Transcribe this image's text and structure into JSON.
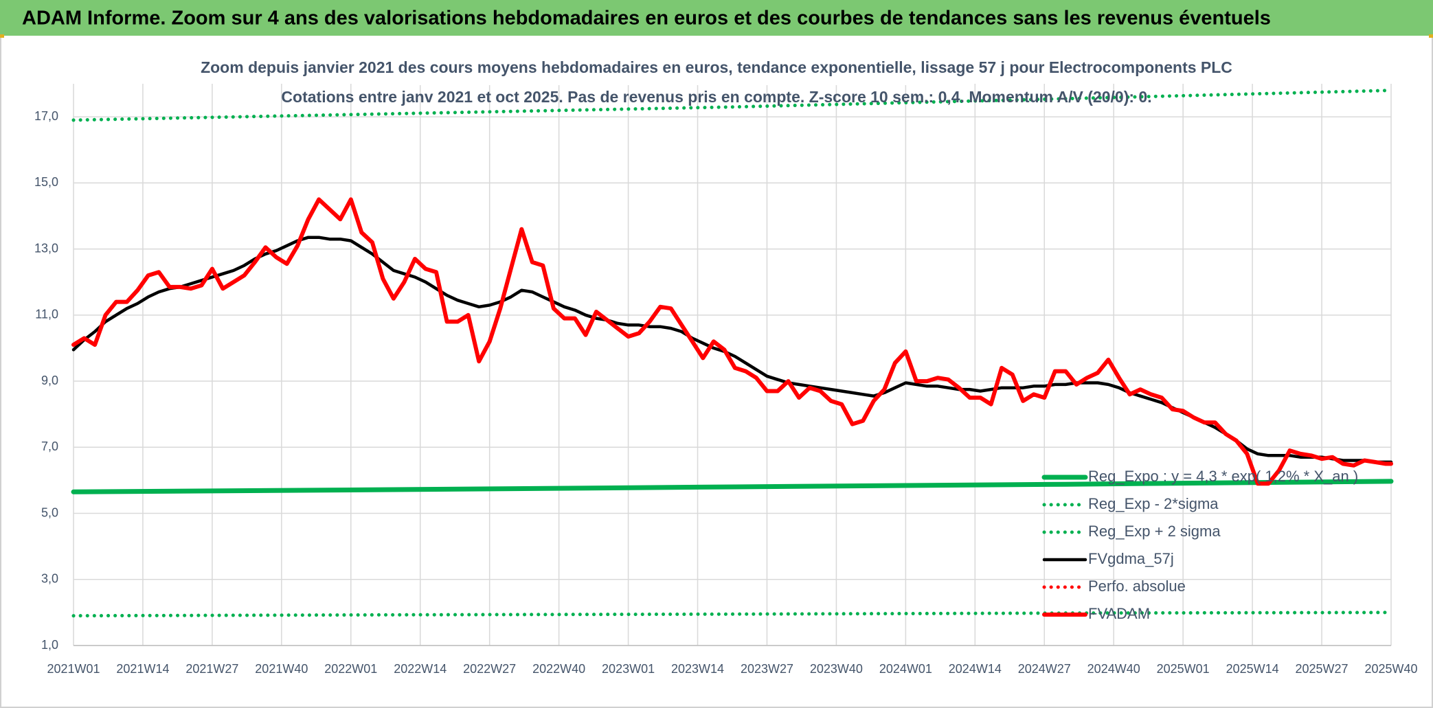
{
  "chart_data": {
    "type": "line",
    "title": "ADAM Informe. Zoom sur 4 ans des valorisations hebdomadaires en euros et des courbes de tendances sans les revenus éventuels",
    "subtitle": "Zoom depuis janvier 2021 des cours moyens hebdomadaires en euros, tendance exponentielle, lissage 57 j pour Electrocomponents PLC",
    "subtitle2": "Cotations entre janv 2021 et oct 2025. Pas de revenus pris en compte. Z-score 10 sem.: 0,4. Momentum A/V (20/0): 0.",
    "x": [
      0,
      2,
      4,
      6,
      8,
      10,
      12,
      14,
      16,
      18,
      20,
      22,
      24,
      26,
      28,
      30,
      32,
      34,
      36,
      38,
      40,
      42,
      44,
      46,
      48,
      50,
      52,
      54,
      56,
      58,
      60,
      62,
      64,
      66,
      68,
      70,
      72,
      74,
      76,
      78,
      80,
      82,
      84,
      86,
      88,
      90,
      92,
      94,
      96,
      98,
      100,
      102,
      104,
      106,
      108,
      110,
      112,
      114,
      116,
      118,
      120,
      122,
      124,
      126,
      128,
      130,
      132,
      134,
      136,
      138,
      140,
      142,
      144,
      146,
      148,
      150,
      152,
      154,
      156,
      158,
      160,
      162,
      164,
      166,
      168,
      170,
      172,
      174,
      176,
      178,
      180,
      182,
      184,
      186,
      188,
      190,
      192,
      194,
      196,
      198,
      200,
      202,
      204,
      206,
      208,
      210,
      212,
      214,
      216,
      218,
      220,
      222,
      224,
      226,
      228,
      230,
      232,
      234,
      236,
      238,
      240,
      242,
      244,
      246,
      247
    ],
    "xlim": [
      0,
      247
    ],
    "xticks": [
      {
        "value": 0,
        "label": "2021W01"
      },
      {
        "value": 13,
        "label": "2021W14"
      },
      {
        "value": 26,
        "label": "2021W27"
      },
      {
        "value": 39,
        "label": "2021W40"
      },
      {
        "value": 52,
        "label": "2022W01"
      },
      {
        "value": 65,
        "label": "2022W14"
      },
      {
        "value": 78,
        "label": "2022W27"
      },
      {
        "value": 91,
        "label": "2022W40"
      },
      {
        "value": 104,
        "label": "2023W01"
      },
      {
        "value": 117,
        "label": "2023W14"
      },
      {
        "value": 130,
        "label": "2023W27"
      },
      {
        "value": 143,
        "label": "2023W40"
      },
      {
        "value": 156,
        "label": "2024W01"
      },
      {
        "value": 169,
        "label": "2024W14"
      },
      {
        "value": 182,
        "label": "2024W27"
      },
      {
        "value": 195,
        "label": "2024W40"
      },
      {
        "value": 208,
        "label": "2025W01"
      },
      {
        "value": 221,
        "label": "2025W14"
      },
      {
        "value": 234,
        "label": "2025W27"
      },
      {
        "value": 247,
        "label": "2025W40"
      }
    ],
    "ylim": [
      1,
      18
    ],
    "yticks": [
      {
        "value": 1,
        "label": "1,0"
      },
      {
        "value": 3,
        "label": "3,0"
      },
      {
        "value": 5,
        "label": "5,0"
      },
      {
        "value": 7,
        "label": "7,0"
      },
      {
        "value": 9,
        "label": "9,0"
      },
      {
        "value": 11,
        "label": "11,0"
      },
      {
        "value": 13,
        "label": "13,0"
      },
      {
        "value": 15,
        "label": "15,0"
      },
      {
        "value": 17,
        "label": "17,0"
      }
    ],
    "grid": true,
    "legend": "lower right",
    "series": [
      {
        "name": "Reg_Expo : y = 4,3 * exp( 1,2% * X_an )",
        "color": "#00b050",
        "style": "solid",
        "x": [
          0,
          62,
          124,
          186,
          247
        ],
        "values": [
          5.65,
          5.72,
          5.8,
          5.88,
          5.97
        ]
      },
      {
        "name": "Reg_Exp - 2*sigma",
        "color": "#00b050",
        "style": "dotted",
        "x": [
          0,
          62,
          124,
          186,
          247
        ],
        "values": [
          1.9,
          1.93,
          1.95,
          1.98,
          2.0
        ]
      },
      {
        "name": "Reg_Exp + 2 sigma",
        "color": "#00b050",
        "style": "dotted",
        "x": [
          0,
          62,
          124,
          186,
          247
        ],
        "values": [
          16.9,
          17.1,
          17.3,
          17.55,
          17.8
        ]
      },
      {
        "name": "FVgdma_57j",
        "color": "#000000",
        "style": "solid",
        "values": [
          9.95,
          10.25,
          10.5,
          10.8,
          11.0,
          11.2,
          11.35,
          11.55,
          11.7,
          11.8,
          11.85,
          11.95,
          12.05,
          12.15,
          12.25,
          12.35,
          12.5,
          12.7,
          12.85,
          12.95,
          13.1,
          13.25,
          13.35,
          13.35,
          13.3,
          13.3,
          13.25,
          13.05,
          12.85,
          12.6,
          12.35,
          12.25,
          12.15,
          12.0,
          11.8,
          11.6,
          11.45,
          11.35,
          11.25,
          11.3,
          11.4,
          11.55,
          11.75,
          11.7,
          11.55,
          11.4,
          11.25,
          11.15,
          11.0,
          10.9,
          10.85,
          10.75,
          10.7,
          10.7,
          10.65,
          10.65,
          10.6,
          10.5,
          10.3,
          10.15,
          10.0,
          9.9,
          9.75,
          9.55,
          9.35,
          9.15,
          9.05,
          8.95,
          8.9,
          8.85,
          8.8,
          8.75,
          8.7,
          8.65,
          8.6,
          8.55,
          8.65,
          8.8,
          8.95,
          8.9,
          8.85,
          8.85,
          8.8,
          8.75,
          8.75,
          8.7,
          8.75,
          8.8,
          8.8,
          8.8,
          8.85,
          8.85,
          8.9,
          8.9,
          8.95,
          8.95,
          8.95,
          8.9,
          8.8,
          8.65,
          8.55,
          8.45,
          8.35,
          8.2,
          8.05,
          7.9,
          7.75,
          7.6,
          7.4,
          7.2,
          6.95,
          6.8,
          6.75,
          6.75,
          6.75,
          6.7,
          6.7,
          6.7,
          6.65,
          6.6,
          6.6,
          6.6,
          6.55,
          6.55,
          6.55
        ]
      },
      {
        "name": "Perfo. absolue",
        "color": "#ff0000",
        "style": "dotted"
      },
      {
        "name": "FVADAM",
        "color": "#ff0000",
        "style": "solid",
        "values": [
          10.1,
          10.3,
          10.1,
          11.0,
          11.4,
          11.4,
          11.75,
          12.2,
          12.3,
          11.85,
          11.85,
          11.8,
          11.9,
          12.4,
          11.8,
          12.0,
          12.2,
          12.6,
          13.05,
          12.75,
          12.55,
          13.1,
          13.9,
          14.5,
          14.2,
          13.9,
          14.5,
          13.5,
          13.2,
          12.1,
          11.5,
          12.0,
          12.7,
          12.4,
          12.3,
          10.8,
          10.8,
          11.0,
          9.6,
          10.2,
          11.2,
          12.4,
          13.6,
          12.6,
          12.5,
          11.2,
          10.9,
          10.9,
          10.4,
          11.1,
          10.85,
          10.6,
          10.35,
          10.45,
          10.8,
          11.25,
          11.2,
          10.7,
          10.2,
          9.7,
          10.2,
          9.95,
          9.4,
          9.3,
          9.1,
          8.7,
          8.7,
          9.0,
          8.5,
          8.8,
          8.7,
          8.4,
          8.3,
          7.7,
          7.8,
          8.4,
          8.75,
          9.55,
          9.9,
          9.0,
          9.0,
          9.1,
          9.05,
          8.8,
          8.5,
          8.5,
          8.3,
          9.4,
          9.2,
          8.4,
          8.6,
          8.5,
          9.3,
          9.3,
          8.9,
          9.1,
          9.25,
          9.65,
          9.1,
          8.6,
          8.75,
          8.6,
          8.5,
          8.15,
          8.1,
          7.9,
          7.75,
          7.75,
          7.4,
          7.2,
          6.8,
          5.9,
          5.9,
          6.3,
          6.9,
          6.8,
          6.75,
          6.65,
          6.7,
          6.5,
          6.45,
          6.6,
          6.55,
          6.5,
          6.5
        ]
      }
    ]
  }
}
